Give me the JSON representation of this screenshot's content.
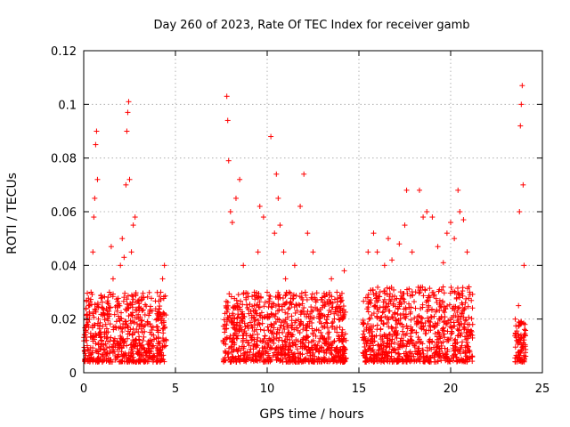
{
  "chart_data": {
    "type": "scatter",
    "title": "Day 260 of 2023, Rate Of TEC Index for receiver gamb",
    "xlabel": "GPS time / hours",
    "ylabel": "ROTI / TECUs",
    "xlim": [
      0,
      25
    ],
    "ylim": [
      0,
      0.12
    ],
    "xticks": [
      "0",
      "5",
      "10",
      "15",
      "20",
      "25"
    ],
    "yticks": [
      "0",
      "0.02",
      "0.04",
      "0.06",
      "0.08",
      "0.1",
      "0.12"
    ],
    "grid": true,
    "marker": "+",
    "color": "#ff0000",
    "points": [
      [
        0.1,
        0.012
      ],
      [
        0.2,
        0.018
      ],
      [
        0.3,
        0.025
      ],
      [
        0.4,
        0.03
      ],
      [
        0.5,
        0.045
      ],
      [
        0.55,
        0.058
      ],
      [
        0.6,
        0.065
      ],
      [
        0.65,
        0.085
      ],
      [
        0.7,
        0.09
      ],
      [
        0.75,
        0.072
      ],
      [
        0.8,
        0.02
      ],
      [
        0.9,
        0.015
      ],
      [
        1.0,
        0.028
      ],
      [
        1.1,
        0.022
      ],
      [
        1.2,
        0.018
      ],
      [
        1.4,
        0.03
      ],
      [
        1.5,
        0.047
      ],
      [
        1.6,
        0.035
      ],
      [
        1.8,
        0.025
      ],
      [
        2.0,
        0.04
      ],
      [
        2.1,
        0.05
      ],
      [
        2.2,
        0.043
      ],
      [
        2.3,
        0.07
      ],
      [
        2.35,
        0.09
      ],
      [
        2.4,
        0.097
      ],
      [
        2.45,
        0.101
      ],
      [
        2.5,
        0.072
      ],
      [
        2.6,
        0.045
      ],
      [
        2.7,
        0.055
      ],
      [
        2.8,
        0.058
      ],
      [
        3.0,
        0.02
      ],
      [
        3.2,
        0.015
      ],
      [
        3.5,
        0.018
      ],
      [
        3.8,
        0.014
      ],
      [
        4.0,
        0.022
      ],
      [
        4.2,
        0.03
      ],
      [
        4.3,
        0.035
      ],
      [
        4.4,
        0.04
      ],
      [
        4.5,
        0.012
      ],
      [
        7.6,
        0.012
      ],
      [
        7.7,
        0.018
      ],
      [
        7.8,
        0.103
      ],
      [
        7.85,
        0.094
      ],
      [
        7.9,
        0.079
      ],
      [
        8.0,
        0.06
      ],
      [
        8.1,
        0.056
      ],
      [
        8.3,
        0.065
      ],
      [
        8.5,
        0.072
      ],
      [
        8.7,
        0.04
      ],
      [
        9.0,
        0.022
      ],
      [
        9.3,
        0.03
      ],
      [
        9.5,
        0.045
      ],
      [
        9.6,
        0.062
      ],
      [
        9.8,
        0.058
      ],
      [
        10.0,
        0.03
      ],
      [
        10.2,
        0.088
      ],
      [
        10.4,
        0.052
      ],
      [
        10.5,
        0.074
      ],
      [
        10.6,
        0.065
      ],
      [
        10.7,
        0.055
      ],
      [
        10.9,
        0.045
      ],
      [
        11.0,
        0.035
      ],
      [
        11.2,
        0.03
      ],
      [
        11.5,
        0.04
      ],
      [
        11.8,
        0.062
      ],
      [
        12.0,
        0.074
      ],
      [
        12.2,
        0.052
      ],
      [
        12.5,
        0.045
      ],
      [
        13.0,
        0.028
      ],
      [
        13.5,
        0.035
      ],
      [
        13.8,
        0.03
      ],
      [
        14.2,
        0.038
      ],
      [
        14.3,
        0.012
      ],
      [
        15.5,
        0.045
      ],
      [
        15.8,
        0.052
      ],
      [
        16.0,
        0.045
      ],
      [
        16.4,
        0.04
      ],
      [
        16.6,
        0.05
      ],
      [
        16.8,
        0.042
      ],
      [
        17.2,
        0.048
      ],
      [
        17.5,
        0.055
      ],
      [
        17.6,
        0.068
      ],
      [
        17.9,
        0.045
      ],
      [
        18.3,
        0.068
      ],
      [
        18.5,
        0.058
      ],
      [
        18.7,
        0.06
      ],
      [
        19.0,
        0.058
      ],
      [
        19.3,
        0.047
      ],
      [
        19.6,
        0.041
      ],
      [
        19.8,
        0.052
      ],
      [
        20.0,
        0.056
      ],
      [
        20.2,
        0.05
      ],
      [
        20.4,
        0.068
      ],
      [
        20.5,
        0.06
      ],
      [
        20.7,
        0.057
      ],
      [
        20.9,
        0.045
      ],
      [
        21.0,
        0.032
      ],
      [
        21.2,
        0.018
      ],
      [
        23.6,
        0.012
      ],
      [
        23.7,
        0.025
      ],
      [
        23.75,
        0.06
      ],
      [
        23.8,
        0.092
      ],
      [
        23.85,
        0.1
      ],
      [
        23.9,
        0.107
      ],
      [
        23.95,
        0.07
      ],
      [
        24.0,
        0.04
      ],
      [
        24.05,
        0.018
      ]
    ],
    "band_ranges": [
      [
        0.0,
        4.5,
        0.004,
        0.03
      ],
      [
        7.6,
        14.3,
        0.004,
        0.03
      ],
      [
        15.2,
        21.2,
        0.004,
        0.032
      ],
      [
        23.5,
        24.1,
        0.004,
        0.02
      ]
    ]
  }
}
